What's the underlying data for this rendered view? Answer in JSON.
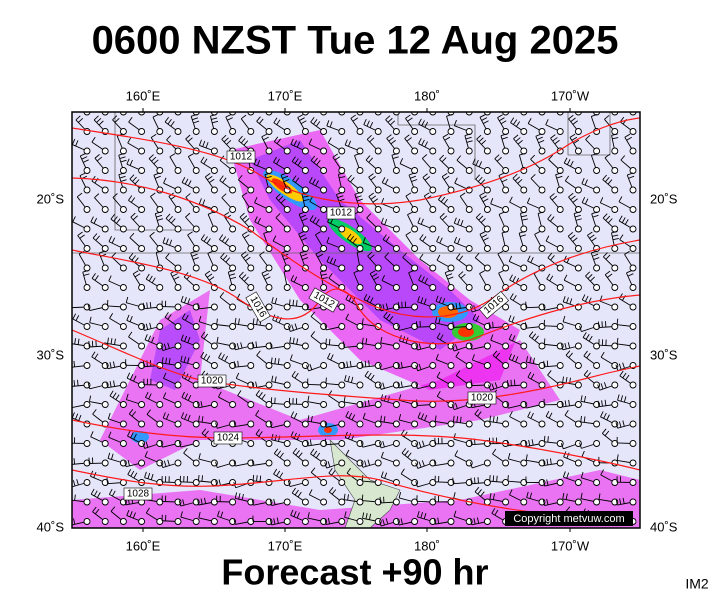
{
  "header": {
    "title": "0600 NZST Tue 12 Aug 2025"
  },
  "map": {
    "top_labels": [
      "160˚E",
      "170˚E",
      "180˚",
      "170˚W"
    ],
    "bottom_labels": [
      "160˚E",
      "170˚E",
      "180˚",
      "170˚W"
    ],
    "left_labels": [
      "20˚S",
      "30˚S",
      "40˚S"
    ],
    "right_labels": [
      "20˚S",
      "30˚S",
      "40˚S"
    ],
    "isobar_labels": [
      "1012",
      "1012",
      "1012",
      "1016",
      "1016",
      "1020",
      "1020",
      "1024",
      "1028"
    ],
    "copyright": "Copyright metvuw.com"
  },
  "footer": {
    "forecast": "Forecast +90 hr",
    "code": "IM2"
  }
}
